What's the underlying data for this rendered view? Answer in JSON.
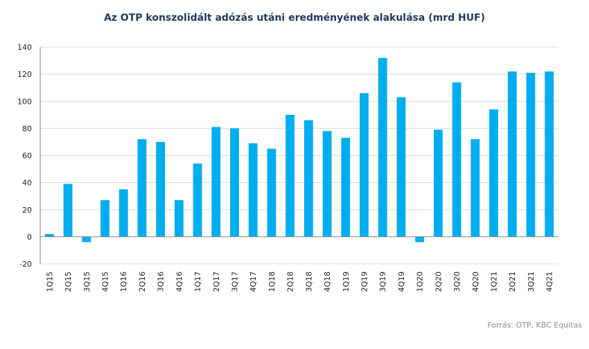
{
  "title": "Az OTP konszolidált adózás utáni eredményének alakulása (mrd HUF)",
  "source": "Forrás: OTP, KBC Equitas",
  "colors": {
    "bar": "#00aeef",
    "grid": "#d9d9d9",
    "axis": "#7f7f7f"
  },
  "chart_data": {
    "type": "bar",
    "title": "Az OTP konszolidált adózás utáni eredményének alakulása (mrd HUF)",
    "xlabel": "",
    "ylabel": "",
    "ylim": [
      -20,
      140
    ],
    "yticks": [
      -20,
      0,
      20,
      40,
      60,
      80,
      100,
      120,
      140
    ],
    "grid": true,
    "legend": "none",
    "categories": [
      "1Q15",
      "2Q15",
      "3Q15",
      "4Q15",
      "1Q16",
      "2Q16",
      "3Q16",
      "4Q16",
      "1Q17",
      "2Q17",
      "3Q17",
      "4Q17",
      "1Q18",
      "2Q18",
      "3Q18",
      "4Q18",
      "1Q19",
      "2Q19",
      "3Q19",
      "4Q19",
      "1Q20",
      "2Q20",
      "3Q20",
      "4Q20",
      "1Q21",
      "2Q21",
      "3Q21",
      "4Q21"
    ],
    "values": [
      2,
      39,
      -4,
      27,
      35,
      72,
      70,
      27,
      54,
      81,
      80,
      69,
      65,
      90,
      86,
      78,
      73,
      106,
      132,
      103,
      -4,
      79,
      114,
      72,
      94,
      122,
      121,
      122
    ]
  }
}
